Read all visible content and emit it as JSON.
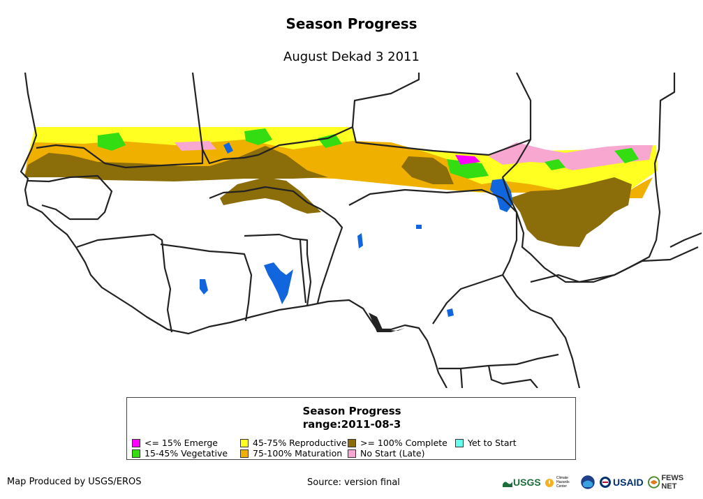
{
  "header": {
    "title": "Season Progress",
    "subtitle": "August Dekad 3 2011"
  },
  "legend": {
    "title": "Season Progress",
    "range": "range:2011-08-3",
    "items": [
      {
        "label": "<= 15% Emerge",
        "color": "#ff00ff"
      },
      {
        "label": "15-45% Vegetative",
        "color": "#33dd11"
      },
      {
        "label": "45-75% Reproductive",
        "color": "#ffff22"
      },
      {
        "label": "75-100% Maturation",
        "color": "#f0b000"
      },
      {
        "label": ">= 100% Complete",
        "color": "#8b6d0a"
      },
      {
        "label": "No Start (Late)",
        "color": "#f8a8d0"
      },
      {
        "label": "Yet to Start",
        "color": "#66ffee"
      }
    ]
  },
  "map": {
    "water_color": "#1166dd",
    "border_color": "#222222"
  },
  "footer": {
    "produced_by": "Map Produced by USGS/EROS",
    "source": "Source: version final",
    "logos": {
      "usgs": "USGS",
      "usaid": "USAID",
      "fews": "FEWS NET",
      "climate": "Climate Hazards Center"
    }
  }
}
